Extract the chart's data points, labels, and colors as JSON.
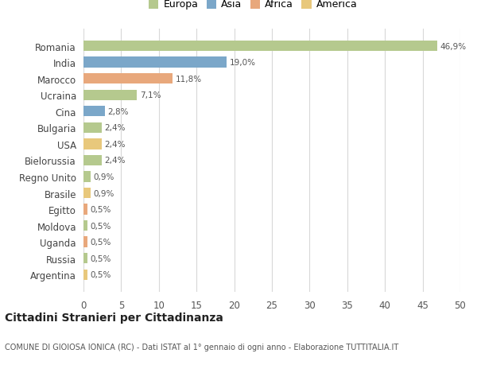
{
  "categories": [
    "Argentina",
    "Russia",
    "Uganda",
    "Moldova",
    "Egitto",
    "Brasile",
    "Regno Unito",
    "Bielorussia",
    "USA",
    "Bulgaria",
    "Cina",
    "Ucraina",
    "Marocco",
    "India",
    "Romania"
  ],
  "values": [
    0.5,
    0.5,
    0.5,
    0.5,
    0.5,
    0.9,
    0.9,
    2.4,
    2.4,
    2.4,
    2.8,
    7.1,
    11.8,
    19.0,
    46.9
  ],
  "colors": [
    "#e8c87c",
    "#b5c98e",
    "#e8a87c",
    "#b5c98e",
    "#e8a87c",
    "#e8c87c",
    "#b5c98e",
    "#b5c98e",
    "#e8c87c",
    "#b5c98e",
    "#7ba7c9",
    "#b5c98e",
    "#e8a87c",
    "#7ba7c9",
    "#b5c98e"
  ],
  "labels": [
    "0,5%",
    "0,5%",
    "0,5%",
    "0,5%",
    "0,5%",
    "0,9%",
    "0,9%",
    "2,4%",
    "2,4%",
    "2,4%",
    "2,8%",
    "7,1%",
    "11,8%",
    "19,0%",
    "46,9%"
  ],
  "xlim": [
    0,
    50
  ],
  "xticks": [
    0,
    5,
    10,
    15,
    20,
    25,
    30,
    35,
    40,
    45,
    50
  ],
  "legend_labels": [
    "Europa",
    "Asia",
    "Africa",
    "America"
  ],
  "legend_colors": [
    "#b5c98e",
    "#7ba7c9",
    "#e8a87c",
    "#e8c87c"
  ],
  "title": "Cittadini Stranieri per Cittadinanza",
  "subtitle": "COMUNE DI GIOIOSA IONICA (RC) - Dati ISTAT al 1° gennaio di ogni anno - Elaborazione TUTTITALIA.IT",
  "bg_color": "#ffffff",
  "grid_color": "#d8d8d8"
}
